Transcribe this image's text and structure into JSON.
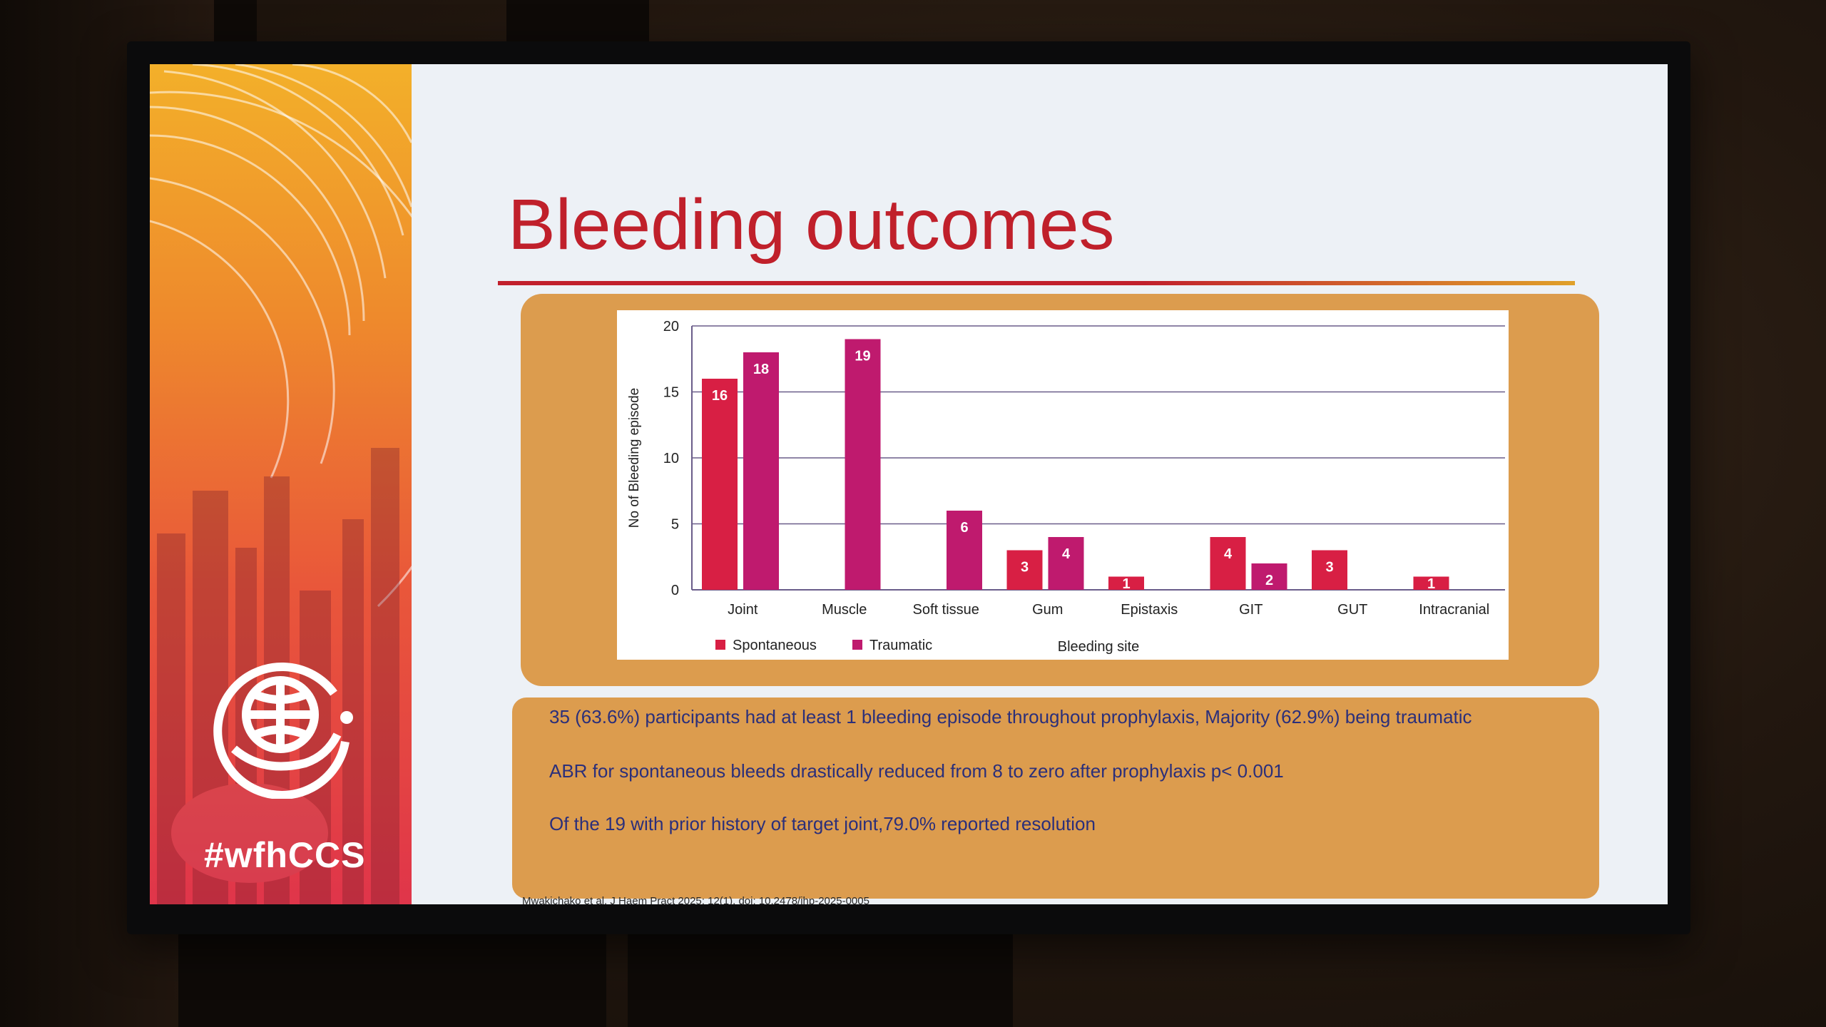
{
  "slide": {
    "title": "Bleeding outcomes",
    "hashtag": "#wfhCCS",
    "bullets": [
      "35 (63.6%) participants had at least 1 bleeding episode throughout prophylaxis, Majority (62.9%) being traumatic",
      "ABR for spontaneous bleeds drastically reduced from 8 to zero after prophylaxis p< 0.001",
      "Of the 19 with prior history of target joint,79.0% reported resolution"
    ],
    "citation": "Mwakichako et al. J Haem Pract 2025; 12(1). doi: 10.2478/jhp-2025-0005"
  },
  "colors": {
    "title": "#c0202b",
    "spontaneous": "#d81f44",
    "traumatic": "#bf1a6e",
    "panel": "#dc9c4e",
    "text": "#2b2f7a"
  },
  "chart_data": {
    "type": "bar",
    "xlabel": "Bleeding site",
    "ylabel": "No of Bleeding episode",
    "ylim": [
      0,
      20
    ],
    "yticks": [
      "0",
      "5",
      "10",
      "15",
      "20"
    ],
    "grid": true,
    "legend_position": "bottom-left",
    "categories": [
      "Joint",
      "Muscle",
      "Soft tissue",
      "Gum",
      "Epistaxis",
      "GIT",
      "GUT",
      "Intracranial"
    ],
    "series": [
      {
        "name": "Spontaneous",
        "values": [
          16,
          null,
          null,
          3,
          1,
          4,
          3,
          1
        ]
      },
      {
        "name": "Traumatic",
        "values": [
          18,
          19,
          6,
          4,
          null,
          2,
          null,
          null
        ]
      }
    ]
  }
}
